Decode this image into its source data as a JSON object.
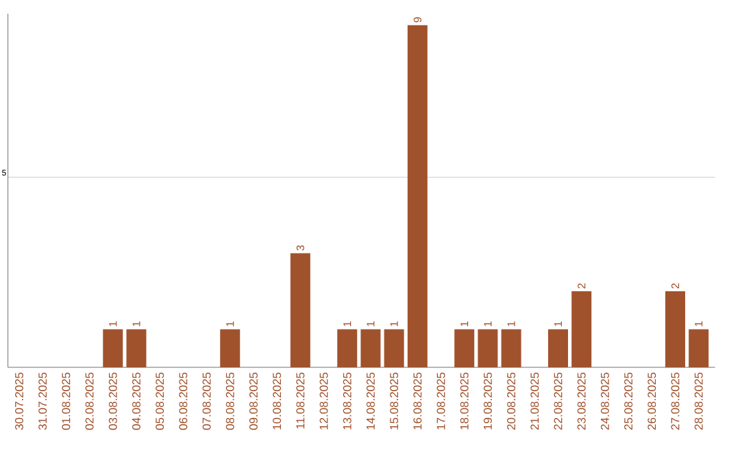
{
  "chart_data": {
    "type": "bar",
    "categories": [
      "30.07.2025",
      "31.07.2025",
      "01.08.2025",
      "02.08.2025",
      "03.08.2025",
      "04.08.2025",
      "05.08.2025",
      "06.08.2025",
      "07.08.2025",
      "08.08.2025",
      "09.08.2025",
      "10.08.2025",
      "11.08.2025",
      "12.08.2025",
      "13.08.2025",
      "14.08.2025",
      "15.08.2025",
      "16.08.2025",
      "17.08.2025",
      "18.08.2025",
      "19.08.2025",
      "20.08.2025",
      "21.08.2025",
      "22.08.2025",
      "23.08.2025",
      "24.08.2025",
      "25.08.2025",
      "26.08.2025",
      "27.08.2025",
      "28.08.2025"
    ],
    "values": [
      0,
      0,
      0,
      0,
      1,
      1,
      0,
      0,
      0,
      1,
      0,
      0,
      3,
      0,
      1,
      1,
      1,
      9,
      0,
      1,
      1,
      1,
      0,
      1,
      2,
      0,
      0,
      0,
      2,
      1
    ],
    "value_labels": [
      null,
      null,
      null,
      null,
      "1",
      "1",
      null,
      null,
      null,
      "1",
      null,
      null,
      "3",
      null,
      "1",
      "1",
      "1",
      "9",
      null,
      "1",
      "1",
      "1",
      null,
      "1",
      "2",
      null,
      null,
      null,
      "2",
      "1"
    ],
    "color": "#a0522d",
    "ylim": [
      0,
      9.3
    ],
    "yticks": [
      5
    ],
    "grid": "y"
  }
}
